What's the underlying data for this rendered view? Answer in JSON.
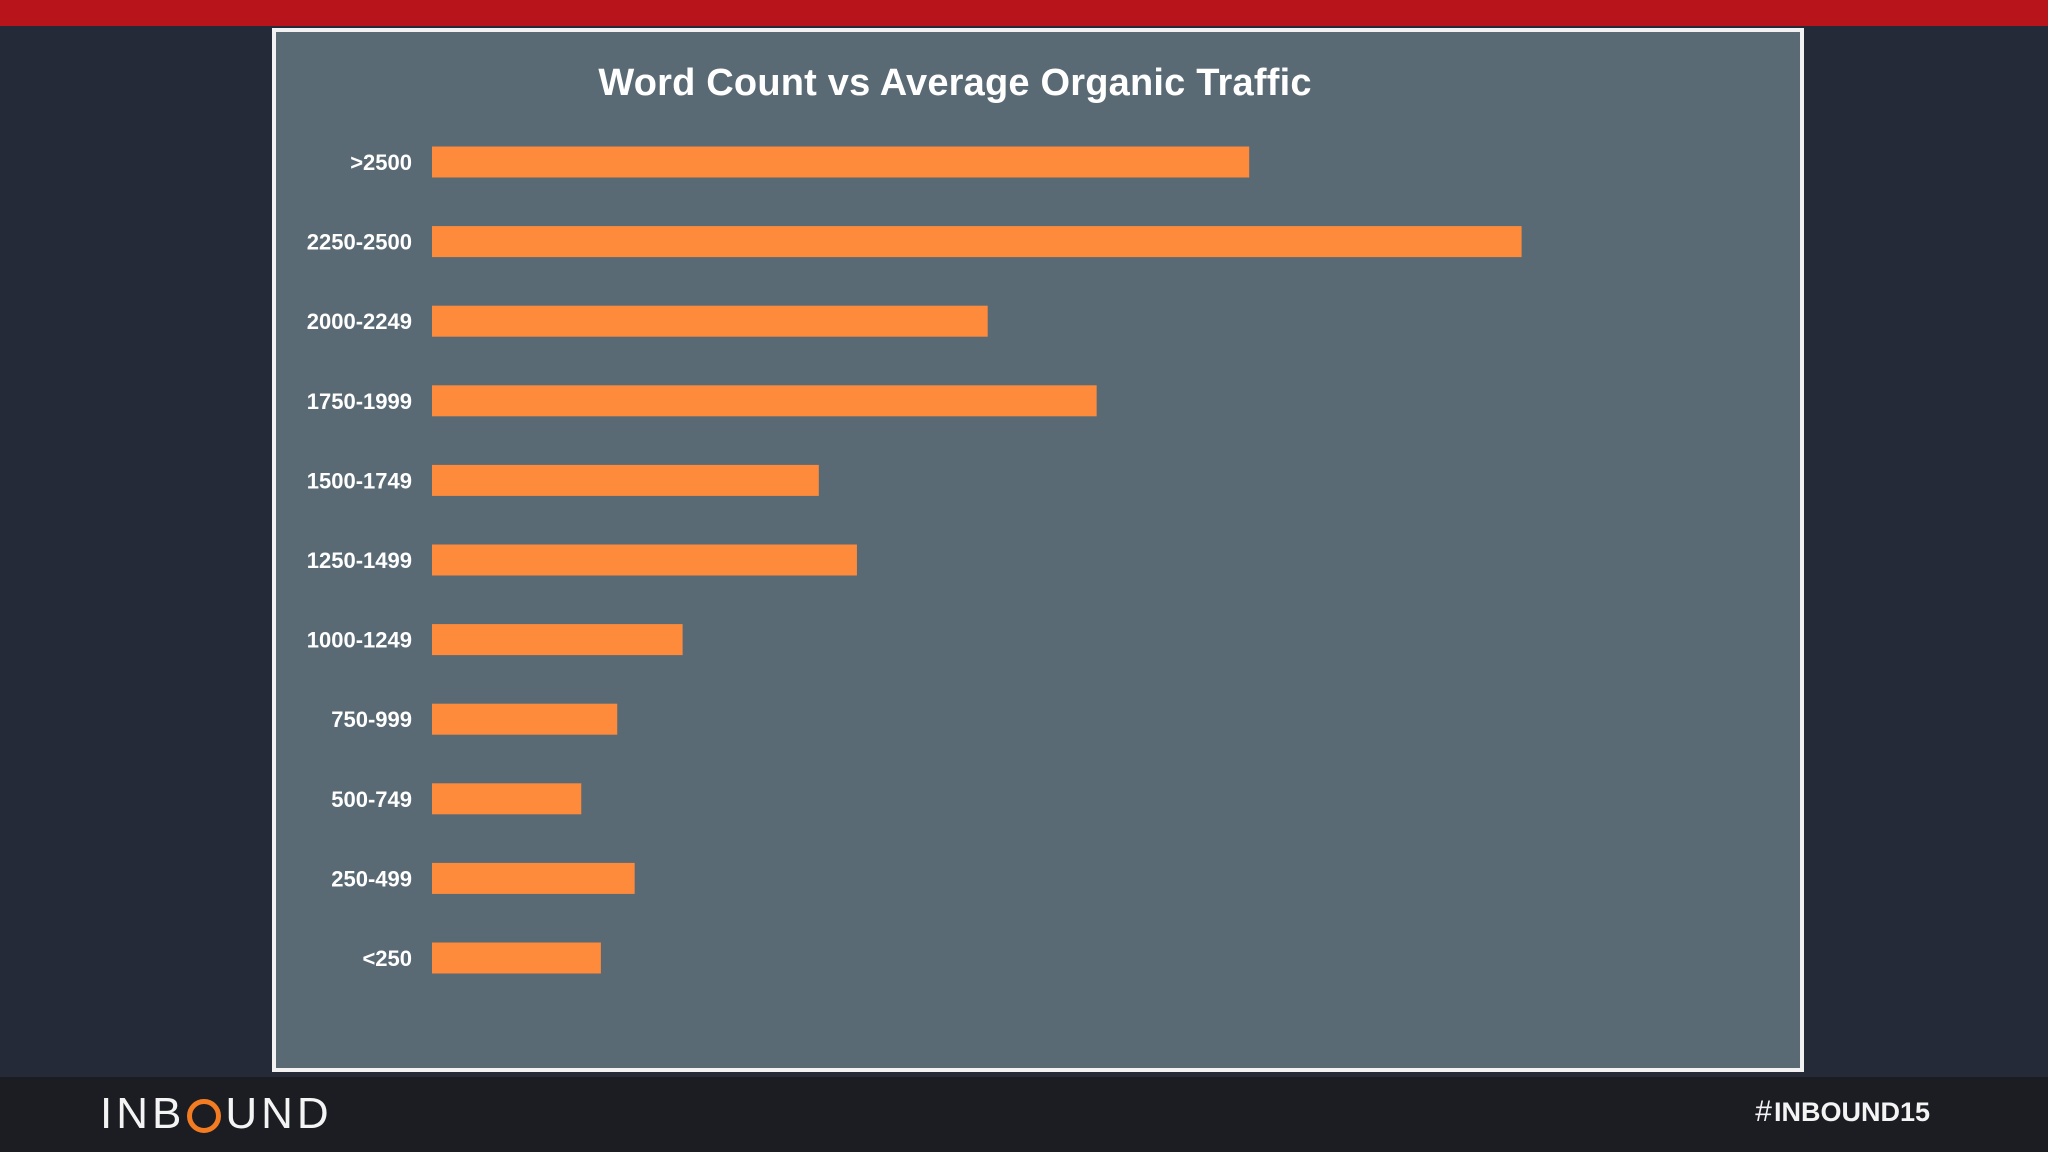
{
  "colors": {
    "top_bar": "#b8141c",
    "background": "#252a38",
    "chart_background": "#596a75",
    "bar": "#fe8a3b",
    "footer": "#1c1d22",
    "logo_accent": "#f37c22"
  },
  "chart_data": {
    "type": "bar",
    "orientation": "horizontal",
    "title": "Word Count vs Average Organic Traffic",
    "xlabel": "",
    "ylabel": "",
    "grid": false,
    "categories": [
      ">2500",
      "2250-2500",
      "2000-2249",
      "1750-1999",
      "1500-1749",
      "1250-1499",
      "1000-1249",
      "750-999",
      "500-749",
      "250-499",
      "<250"
    ],
    "values": [
      75,
      100,
      51,
      61,
      35.5,
      39,
      23,
      17,
      13.7,
      18.6,
      15.5
    ],
    "xlim": [
      0,
      100
    ]
  },
  "footer": {
    "logo_prefix": "INB",
    "logo_suffix": "UND",
    "hashtag_icon": "#",
    "hashtag": "INBOUND15"
  }
}
